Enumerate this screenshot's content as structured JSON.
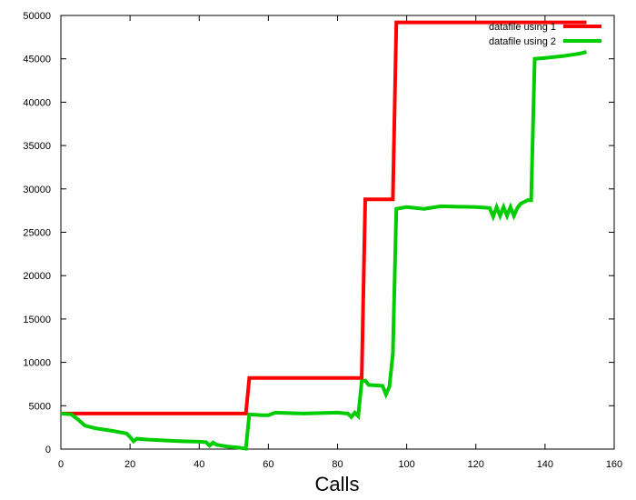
{
  "chart_data": {
    "type": "line",
    "xlabel": "Calls",
    "ylabel": "",
    "title": "",
    "xlim": [
      0,
      160
    ],
    "ylim": [
      0,
      50000
    ],
    "xticks": [
      0,
      20,
      40,
      60,
      80,
      100,
      120,
      140,
      160
    ],
    "yticks": [
      0,
      5000,
      10000,
      15000,
      20000,
      25000,
      30000,
      35000,
      40000,
      45000,
      50000
    ],
    "grid": false,
    "legend_position": "top-right",
    "series": [
      {
        "name": "datafile using 1",
        "color": "#ff0000",
        "points": [
          [
            0,
            4100
          ],
          [
            53.5,
            4100
          ],
          [
            54.5,
            8200
          ],
          [
            87,
            8200
          ],
          [
            88,
            28800
          ],
          [
            96,
            28800
          ],
          [
            97,
            49200
          ],
          [
            152,
            49200
          ]
        ]
      },
      {
        "name": "datafile using 2",
        "color": "#00cc00",
        "points": [
          [
            0,
            4100
          ],
          [
            3,
            4000
          ],
          [
            5,
            3400
          ],
          [
            7,
            2700
          ],
          [
            10,
            2400
          ],
          [
            15,
            2100
          ],
          [
            19,
            1800
          ],
          [
            20,
            1400
          ],
          [
            21,
            900
          ],
          [
            22,
            1200
          ],
          [
            25,
            1100
          ],
          [
            30,
            1000
          ],
          [
            35,
            900
          ],
          [
            40,
            850
          ],
          [
            42,
            800
          ],
          [
            43,
            400
          ],
          [
            44,
            750
          ],
          [
            45,
            500
          ],
          [
            48,
            300
          ],
          [
            52,
            150
          ],
          [
            53.5,
            50
          ],
          [
            54.5,
            4000
          ],
          [
            58,
            3900
          ],
          [
            60,
            3900
          ],
          [
            62,
            4200
          ],
          [
            70,
            4100
          ],
          [
            80,
            4200
          ],
          [
            83,
            4100
          ],
          [
            84,
            3700
          ],
          [
            85,
            4200
          ],
          [
            86,
            3800
          ],
          [
            87,
            7800
          ],
          [
            88,
            7900
          ],
          [
            89,
            7400
          ],
          [
            93,
            7300
          ],
          [
            94,
            6300
          ],
          [
            95,
            7200
          ],
          [
            96,
            11000
          ],
          [
            97,
            27700
          ],
          [
            100,
            27900
          ],
          [
            105,
            27700
          ],
          [
            110,
            28000
          ],
          [
            120,
            27900
          ],
          [
            124,
            27800
          ],
          [
            125,
            26800
          ],
          [
            126,
            27900
          ],
          [
            127,
            26900
          ],
          [
            128,
            27900
          ],
          [
            129,
            26900
          ],
          [
            130,
            27900
          ],
          [
            131,
            26900
          ],
          [
            132,
            27800
          ],
          [
            133,
            28300
          ],
          [
            135,
            28700
          ],
          [
            136,
            28700
          ],
          [
            137,
            45000
          ],
          [
            140,
            45100
          ],
          [
            145,
            45300
          ],
          [
            150,
            45600
          ],
          [
            152,
            45800
          ]
        ]
      }
    ]
  }
}
